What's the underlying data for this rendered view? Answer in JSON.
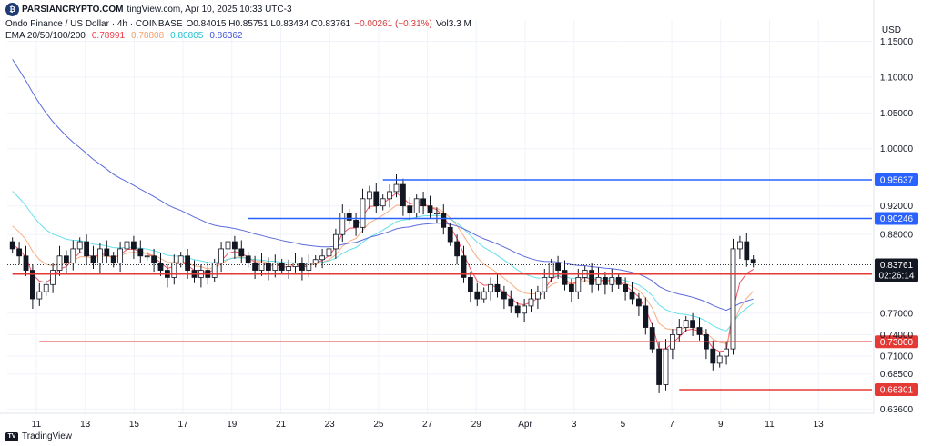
{
  "header": {
    "watermark": "PARSIANCRYPTO.COM",
    "published": "tingView.com, Apr 10, 2025 10:33 UTC-3",
    "symbol": "Ondo Finance / US Dollar · 4h · COINBASE",
    "ohlc": "O0.84015  H0.85751  L0.83434  C0.83761",
    "change": "−0.00261 (−0.31%)",
    "volume": "Vol3.3 M",
    "ema_label": "EMA 20/50/100/200",
    "ema_values": [
      {
        "value": "0.78991",
        "color": "#f23645"
      },
      {
        "value": "0.78808",
        "color": "#f7a06b"
      },
      {
        "value": "0.80805",
        "color": "#4dd9e6"
      },
      {
        "value": "0.86362",
        "color": "#3f51d6"
      }
    ]
  },
  "currency": "USD",
  "footer": {
    "brand": "TradingView"
  },
  "colors": {
    "up": "#ffffff",
    "down": "#131722",
    "support": "#e53935",
    "resistance": "#2962ff",
    "price": "#131722"
  },
  "chart_data": {
    "type": "candlestick",
    "symbol": "ONDOUSD",
    "timeframe": "4h",
    "x_ticks": [
      "11",
      "13",
      "15",
      "17",
      "19",
      "21",
      "23",
      "25",
      "27",
      "29",
      "Apr",
      "3",
      "5",
      "7",
      "9",
      "11",
      "13"
    ],
    "y_ticks": [
      "1.15000",
      "1.10000",
      "1.05000",
      "1.00000",
      "0.92000",
      "0.88000",
      "0.77000",
      "0.74000",
      "0.71000",
      "0.68500",
      "0.63600"
    ],
    "ylim": [
      0.63,
      1.18
    ],
    "horizontal_levels": [
      {
        "value": 0.95637,
        "label": "0.95637",
        "color": "#2962ff",
        "start_index": 55
      },
      {
        "value": 0.90246,
        "label": "0.90246",
        "color": "#2962ff",
        "start_index": 35
      },
      {
        "value": 0.82471,
        "label": "0.82471",
        "color": "#e53935",
        "start_index": 0
      },
      {
        "value": 0.73,
        "label": "0.73000",
        "color": "#e53935",
        "start_index": 4
      },
      {
        "value": 0.66301,
        "label": "0.66301",
        "color": "#e53935",
        "start_index": 99
      }
    ],
    "last_price": {
      "value": 0.83761,
      "label": "0.83761",
      "countdown": "02:26:14"
    },
    "candles_close": [
      0.86,
      0.85,
      0.83,
      0.79,
      0.8,
      0.81,
      0.83,
      0.85,
      0.84,
      0.86,
      0.87,
      0.85,
      0.84,
      0.86,
      0.85,
      0.84,
      0.86,
      0.87,
      0.86,
      0.85,
      0.85,
      0.84,
      0.83,
      0.82,
      0.84,
      0.85,
      0.83,
      0.82,
      0.83,
      0.82,
      0.84,
      0.86,
      0.87,
      0.86,
      0.85,
      0.84,
      0.83,
      0.84,
      0.83,
      0.84,
      0.83,
      0.835,
      0.84,
      0.83,
      0.84,
      0.845,
      0.85,
      0.86,
      0.88,
      0.91,
      0.9,
      0.89,
      0.93,
      0.94,
      0.92,
      0.93,
      0.94,
      0.95,
      0.92,
      0.91,
      0.93,
      0.92,
      0.91,
      0.91,
      0.89,
      0.87,
      0.85,
      0.82,
      0.8,
      0.79,
      0.8,
      0.81,
      0.8,
      0.79,
      0.78,
      0.77,
      0.78,
      0.79,
      0.8,
      0.82,
      0.84,
      0.83,
      0.81,
      0.8,
      0.82,
      0.83,
      0.81,
      0.82,
      0.81,
      0.82,
      0.81,
      0.8,
      0.79,
      0.78,
      0.75,
      0.72,
      0.67,
      0.72,
      0.74,
      0.75,
      0.76,
      0.75,
      0.74,
      0.72,
      0.7,
      0.71,
      0.72,
      0.86,
      0.87,
      0.845,
      0.84
    ],
    "ema_lines": [
      {
        "name": "EMA 20",
        "color": "#f23645"
      },
      {
        "name": "EMA 50",
        "color": "#f7a06b"
      },
      {
        "name": "EMA 100",
        "color": "#4dd9e6"
      },
      {
        "name": "EMA 200",
        "color": "#3f51d6"
      }
    ]
  }
}
